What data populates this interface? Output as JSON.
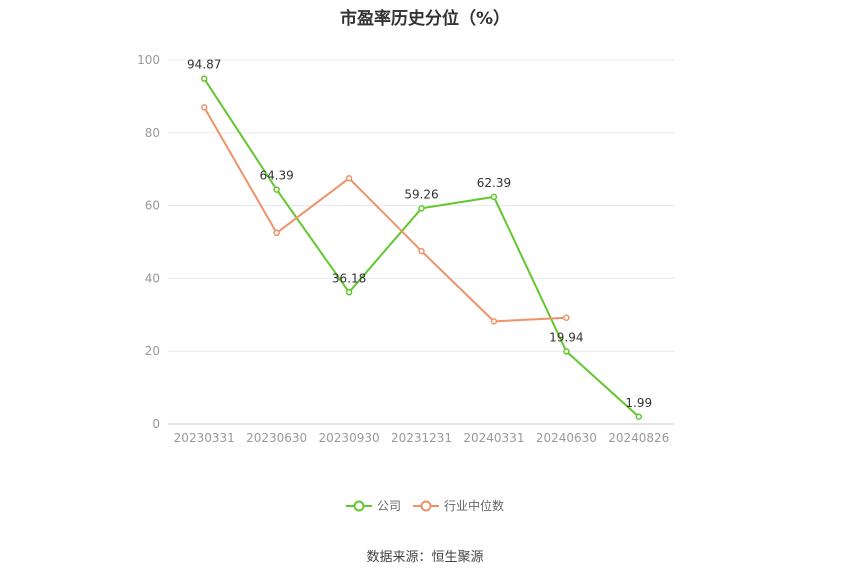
{
  "title": "市盈率历史分位（%）",
  "source": "数据来源：恒生聚源",
  "colors": {
    "company": "#62c72e",
    "industry": "#f0916a",
    "grid": "#e6e8f0",
    "axis": "#999999",
    "label": "#333333"
  },
  "chart_data": {
    "type": "line",
    "title": "市盈率历史分位（%）",
    "categories": [
      "20230331",
      "20230630",
      "20230930",
      "20231231",
      "20240331",
      "20240630",
      "20240826"
    ],
    "ylim": [
      0,
      100
    ],
    "yticks": [
      0,
      20,
      40,
      60,
      80,
      100
    ],
    "grid": true,
    "legend_position": "bottom-center",
    "series": [
      {
        "name": "公司",
        "values": [
          94.87,
          64.39,
          36.18,
          59.26,
          62.39,
          19.94,
          1.99
        ],
        "labels": true
      },
      {
        "name": "行业中位数",
        "values": [
          87.0,
          52.5,
          67.5,
          47.5,
          28.2,
          29.2,
          null
        ],
        "labels": false
      }
    ]
  }
}
